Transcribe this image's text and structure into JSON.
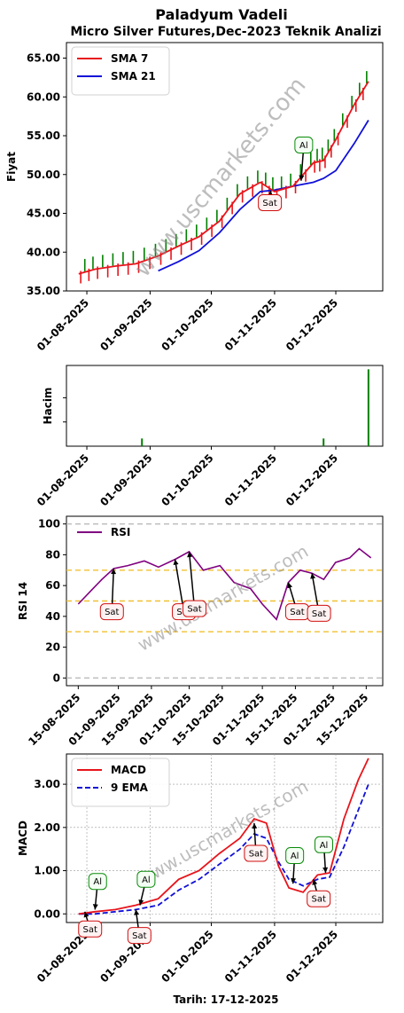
{
  "title": "Paladyum Vadeli",
  "subtitle": "Micro Silver Futures,Dec-2023 Teknik Analizi",
  "watermark": "www.uscmarkets.com",
  "footer": "Tarih: 17-12-2025",
  "colors": {
    "sma7": "#e8141b",
    "sma21": "#1010d8",
    "rsi": "#800080",
    "macd": "#e8141b",
    "ema": "#1010d8",
    "up": "#008000",
    "down": "#e8141b",
    "al": "#0a8a0a",
    "sat": "#d01010"
  },
  "chart_data": [
    {
      "type": "line",
      "panel": "price",
      "ylabel": "Fiyat",
      "ylim": [
        35,
        67
      ],
      "yticks": [
        "35.00",
        "40.00",
        "45.00",
        "50.00",
        "55.00",
        "60.00",
        "65.00"
      ],
      "xticks": [
        "01-08-2025",
        "01-09-2025",
        "01-10-2025",
        "01-11-2025",
        "01-12-2025"
      ],
      "x_dates": [
        "2025-07-28",
        "2025-08-05",
        "2025-08-15",
        "2025-08-25",
        "2025-09-05",
        "2025-09-15",
        "2025-09-25",
        "2025-10-05",
        "2025-10-15",
        "2025-10-25",
        "2025-11-01",
        "2025-11-10",
        "2025-11-20",
        "2025-11-25",
        "2025-12-01",
        "2025-12-10",
        "2025-12-17"
      ],
      "series": [
        {
          "name": "SMA 7",
          "values": [
            37.2,
            37.8,
            38.2,
            38.5,
            39.5,
            40.8,
            42.0,
            44.0,
            47.5,
            49.0,
            47.8,
            48.5,
            51.5,
            51.8,
            54.5,
            59.0,
            62.0
          ]
        },
        {
          "name": "SMA 21",
          "values": [
            null,
            null,
            null,
            null,
            37.6,
            38.8,
            40.2,
            42.5,
            45.5,
            47.8,
            48.0,
            48.5,
            49.0,
            49.5,
            50.5,
            54.0,
            57.0
          ]
        }
      ],
      "annotations": [
        {
          "label": "Al",
          "date": "2025-11-14"
        },
        {
          "label": "Sat",
          "date": "2025-10-31"
        }
      ]
    },
    {
      "type": "bar",
      "panel": "volume",
      "ylabel": "Hacim",
      "xticks": [
        "01-08-2025",
        "01-09-2025",
        "01-10-2025",
        "01-11-2025",
        "01-12-2025"
      ],
      "x_dates": [
        "2025-08-28",
        "2025-11-25",
        "2025-12-17"
      ],
      "values": [
        1,
        1,
        10
      ]
    },
    {
      "type": "line",
      "panel": "rsi",
      "ylabel": "RSI 14",
      "ylim": [
        -5,
        105
      ],
      "yticks": [
        "0",
        "20",
        "40",
        "60",
        "80",
        "100"
      ],
      "xticks": [
        "15-08-2025",
        "01-09-2025",
        "15-09-2025",
        "01-10-2025",
        "15-10-2025",
        "01-11-2025",
        "15-11-2025",
        "01-12-2025",
        "15-12-2025"
      ],
      "x_dates": [
        "2025-08-15",
        "2025-08-20",
        "2025-08-25",
        "2025-08-30",
        "2025-09-05",
        "2025-09-12",
        "2025-09-18",
        "2025-09-25",
        "2025-10-01",
        "2025-10-07",
        "2025-10-14",
        "2025-10-20",
        "2025-10-27",
        "2025-11-01",
        "2025-11-07",
        "2025-11-12",
        "2025-11-17",
        "2025-11-22",
        "2025-11-27",
        "2025-12-02",
        "2025-12-08",
        "2025-12-12",
        "2025-12-17"
      ],
      "series": [
        {
          "name": "RSI",
          "values": [
            48,
            56,
            64,
            71,
            73,
            76,
            72,
            77,
            82,
            70,
            73,
            62,
            58,
            48,
            38,
            62,
            70,
            68,
            64,
            75,
            78,
            84,
            78
          ]
        }
      ],
      "annotations": [
        {
          "label": "Sat",
          "date": "2025-08-30"
        },
        {
          "label": "Sat",
          "date": "2025-09-25"
        },
        {
          "label": "Sat",
          "date": "2025-10-01"
        },
        {
          "label": "Sat",
          "date": "2025-11-12"
        },
        {
          "label": "Sat",
          "date": "2025-11-22"
        }
      ]
    },
    {
      "type": "line",
      "panel": "macd",
      "ylabel": "MACD",
      "xlabel": "Tarih: 17-12-2025",
      "ylim": [
        -0.2,
        3.7
      ],
      "yticks": [
        "0.00",
        "1.00",
        "2.00",
        "3.00"
      ],
      "xticks": [
        "01-08-2025",
        "01-09-2025",
        "01-10-2025",
        "01-11-2025",
        "01-12-2025"
      ],
      "x_dates": [
        "2025-07-28",
        "2025-08-05",
        "2025-08-15",
        "2025-08-25",
        "2025-09-05",
        "2025-09-15",
        "2025-09-25",
        "2025-10-05",
        "2025-10-15",
        "2025-10-22",
        "2025-10-28",
        "2025-11-03",
        "2025-11-08",
        "2025-11-15",
        "2025-11-22",
        "2025-11-28",
        "2025-12-05",
        "2025-12-12",
        "2025-12-17"
      ],
      "series": [
        {
          "name": "MACD",
          "values": [
            0.0,
            0.05,
            0.1,
            0.2,
            0.35,
            0.8,
            1.0,
            1.4,
            1.75,
            2.2,
            2.1,
            1.1,
            0.6,
            0.5,
            0.9,
            0.95,
            2.2,
            3.1,
            3.6
          ]
        },
        {
          "name": "9 EMA",
          "values": [
            0.0,
            0.0,
            0.05,
            0.1,
            0.2,
            0.55,
            0.8,
            1.15,
            1.5,
            1.85,
            1.75,
            1.2,
            0.8,
            0.65,
            0.8,
            0.85,
            1.55,
            2.4,
            3.0
          ]
        }
      ],
      "annotations": [
        {
          "label": "Sat",
          "date": "2025-07-31"
        },
        {
          "label": "Al",
          "date": "2025-08-05"
        },
        {
          "label": "Sat",
          "date": "2025-08-25"
        },
        {
          "label": "Al",
          "date": "2025-08-27"
        },
        {
          "label": "Sat",
          "date": "2025-10-22"
        },
        {
          "label": "Al",
          "date": "2025-11-10"
        },
        {
          "label": "Sat",
          "date": "2025-11-20"
        },
        {
          "label": "Al",
          "date": "2025-11-26"
        }
      ]
    }
  ]
}
